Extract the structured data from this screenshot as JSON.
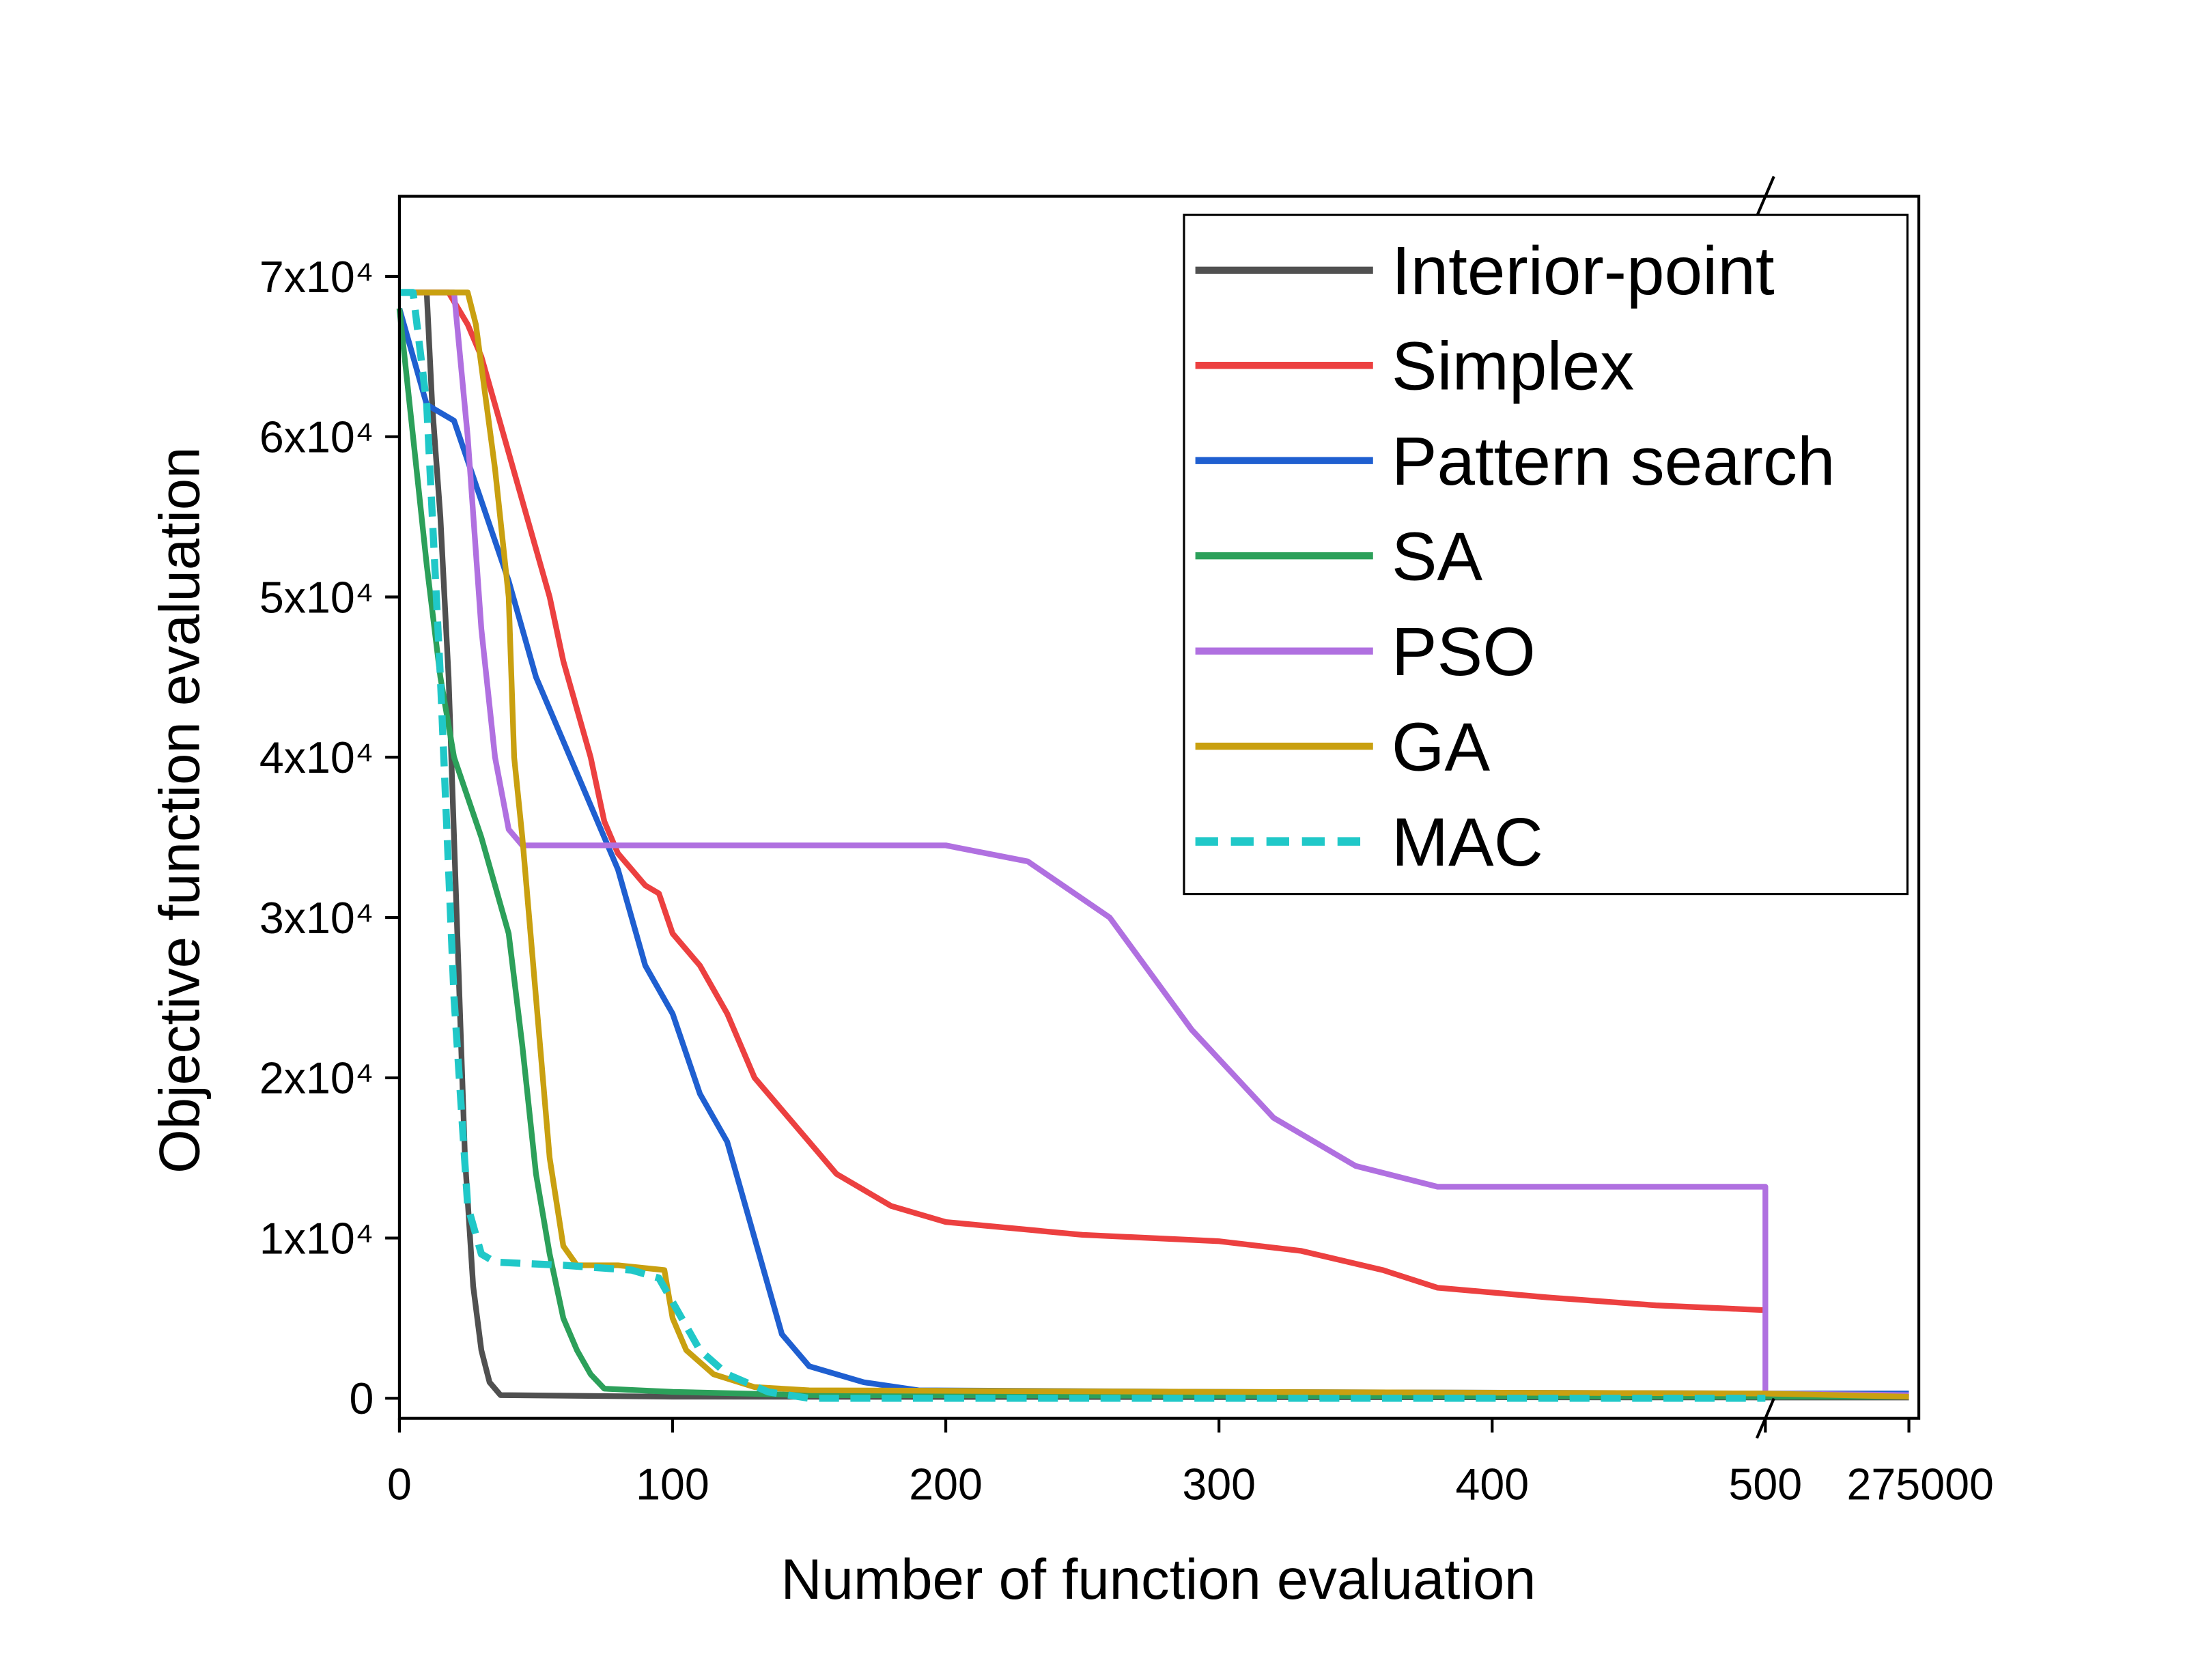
{
  "chart_data": {
    "type": "line",
    "x_label": "Number of function evaluation",
    "y_label": "Objective function evaluation",
    "xlim": [
      0,
      294000
    ],
    "x_break": 500,
    "xticks": [
      0,
      100,
      200,
      300,
      400,
      500,
      275000
    ],
    "ylim": [
      -1250,
      75000
    ],
    "yticks": [
      0,
      {
        "value": 10000,
        "label": "1x10⁴"
      },
      {
        "value": 20000,
        "label": "2x10⁴"
      },
      {
        "value": 30000,
        "label": "3x10⁴"
      },
      {
        "value": 40000,
        "label": "4x10⁴"
      },
      {
        "value": 50000,
        "label": "5x10⁴"
      },
      {
        "value": 60000,
        "label": "6x10⁴"
      },
      {
        "value": 70000,
        "label": "7x10⁴"
      }
    ],
    "legend": "upper right",
    "series": [
      {
        "name": "Interior-point",
        "color": "#505050",
        "dash": false,
        "x": [
          10,
          12,
          15,
          18,
          21,
          24,
          27,
          30,
          33,
          37,
          100,
          500,
          275000
        ],
        "values": [
          69000,
          62000,
          55000,
          45000,
          30000,
          15000,
          7000,
          3000,
          1000,
          200,
          100,
          50,
          50
        ]
      },
      {
        "name": "Simplex",
        "color": "#ec4040",
        "dash": false,
        "x": [
          0,
          18,
          25,
          30,
          35,
          40,
          45,
          50,
          55,
          60,
          65,
          70,
          75,
          80,
          85,
          90,
          95,
          100,
          110,
          120,
          130,
          140,
          150,
          160,
          180,
          200,
          250,
          300,
          330,
          360,
          380,
          420,
          460,
          500
        ],
        "values": [
          69000,
          69000,
          67000,
          65000,
          62000,
          59000,
          56000,
          53000,
          50000,
          46000,
          43000,
          40000,
          36000,
          34000,
          33000,
          32000,
          31500,
          29000,
          27000,
          24000,
          20000,
          18000,
          16000,
          14000,
          12000,
          11000,
          10200,
          9800,
          9200,
          8000,
          6900,
          6300,
          5800,
          5500
        ]
      },
      {
        "name": "Pattern search",
        "color": "#1f5fd0",
        "dash": false,
        "x": [
          0,
          10,
          20,
          30,
          40,
          50,
          60,
          70,
          80,
          90,
          100,
          110,
          120,
          130,
          140,
          150,
          170,
          190,
          300,
          500,
          275000
        ],
        "values": [
          68000,
          62000,
          61000,
          56000,
          51000,
          45000,
          41000,
          37000,
          33000,
          27000,
          24000,
          19000,
          16000,
          10000,
          4000,
          2000,
          1000,
          500,
          400,
          300,
          300
        ]
      },
      {
        "name": "SA",
        "color": "#2ca05a",
        "dash": false,
        "x": [
          0,
          5,
          10,
          15,
          20,
          30,
          40,
          45,
          50,
          55,
          60,
          65,
          70,
          75,
          100,
          150,
          500,
          275000
        ],
        "values": [
          68000,
          60000,
          52000,
          45000,
          40000,
          35000,
          29000,
          22000,
          14000,
          9000,
          5000,
          3000,
          1500,
          600,
          400,
          200,
          100,
          100
        ]
      },
      {
        "name": "PSO",
        "color": "#b070e0",
        "dash": false,
        "x": [
          0,
          20,
          25,
          30,
          35,
          40,
          45,
          200,
          230,
          260,
          290,
          320,
          350,
          380,
          500,
          500,
          275000
        ],
        "values": [
          69000,
          69000,
          60000,
          48000,
          40000,
          35500,
          34500,
          34500,
          33500,
          30000,
          23000,
          17500,
          14500,
          13200,
          13200,
          300,
          200
        ]
      },
      {
        "name": "GA",
        "color": "#c9a010",
        "dash": false,
        "x": [
          0,
          20,
          25,
          28,
          35,
          40,
          42,
          45,
          50,
          55,
          60,
          65,
          80,
          97,
          100,
          105,
          115,
          130,
          150,
          300,
          500,
          275000
        ],
        "values": [
          69000,
          69000,
          69000,
          67000,
          58000,
          50000,
          40000,
          35000,
          25000,
          15000,
          9500,
          8300,
          8300,
          8000,
          5000,
          3000,
          1500,
          700,
          500,
          400,
          300,
          100
        ]
      },
      {
        "name": "MAC",
        "color": "#20c8c8",
        "dash": true,
        "x": [
          0,
          5,
          10,
          15,
          20,
          25,
          30,
          35,
          60,
          85,
          95,
          100,
          110,
          120,
          135,
          150,
          500
        ],
        "values": [
          69000,
          69000,
          62000,
          45000,
          25000,
          12000,
          9000,
          8500,
          8300,
          8000,
          7500,
          6000,
          3000,
          1500,
          400,
          0,
          0
        ]
      }
    ]
  }
}
